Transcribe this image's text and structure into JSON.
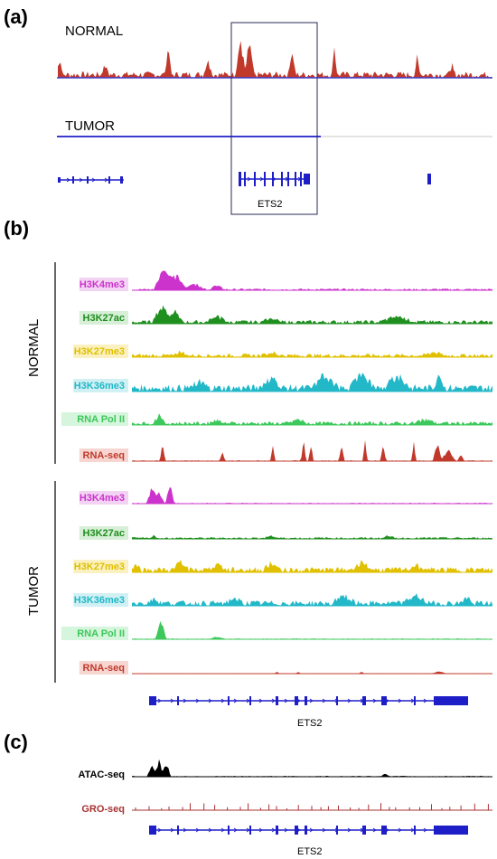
{
  "panels": {
    "a": {
      "label": "(a)",
      "normal_label": "NORMAL",
      "tumor_label": "TUMOR",
      "gene_label": "ETS2",
      "normal_color": "#c0392b",
      "baseline_color": "#3b3bcf"
    },
    "b": {
      "label": "(b)",
      "normal_group": "NORMAL",
      "tumor_group": "TUMOR",
      "gene_label": "ETS2",
      "tracks": [
        {
          "name": "H3K4me3",
          "color": "#cc33cc",
          "bg": "#f3d3f3"
        },
        {
          "name": "H3K27ac",
          "color": "#1f8f1f",
          "bg": "#d7efd7"
        },
        {
          "name": "H3K27me3",
          "color": "#e0c000",
          "bg": "#fbf1c0"
        },
        {
          "name": "H3K36me3",
          "color": "#22b8c8",
          "bg": "#d0f0f4"
        },
        {
          "name": "RNA Pol II",
          "color": "#3cc85a",
          "bg": "#d5f5dc"
        },
        {
          "name": "RNA-seq",
          "color": "#c0392b",
          "bg": "#f7d6d2"
        }
      ]
    },
    "c": {
      "label": "(c)",
      "gene_label": "ETS2",
      "tracks": [
        {
          "name": "ATAC-seq",
          "color": "#000000"
        },
        {
          "name": "GRO-seq",
          "color": "#a83232"
        }
      ]
    },
    "gene_color": "#1e1ec8"
  }
}
